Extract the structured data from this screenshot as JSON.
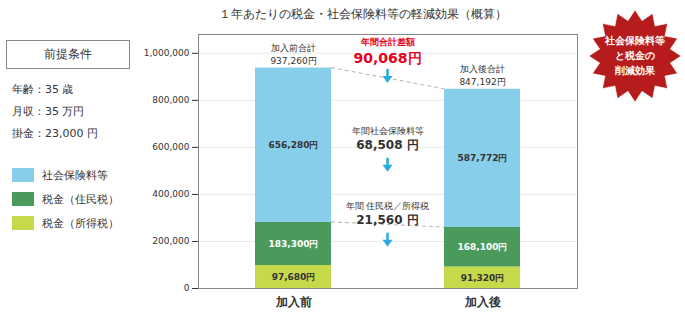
{
  "chart_data": {
    "type": "bar",
    "stacked": true,
    "title": "１年あたりの税金・社会保険料等の軽減効果（概算）",
    "categories": [
      "加入前",
      "加入後"
    ],
    "series": [
      {
        "name": "税金（所得税）",
        "color": "#c5d94a",
        "values": [
          97680,
          91320
        ],
        "value_labels": [
          "97,680円",
          "91,320円"
        ]
      },
      {
        "name": "税金（住民税）",
        "color": "#4a9a5c",
        "values": [
          183300,
          168100
        ],
        "value_labels": [
          "183,300円",
          "168,100円"
        ]
      },
      {
        "name": "社会保険料等",
        "color": "#87CEEB",
        "values": [
          656280,
          587772
        ],
        "value_labels": [
          "656,280円",
          "587,772円"
        ]
      }
    ],
    "totals": [
      937260,
      847192
    ],
    "total_labels": [
      "加入前合計",
      "加入後合計"
    ],
    "total_value_labels": [
      "937,260円",
      "847,192円"
    ],
    "ylim": [
      0,
      1080000
    ],
    "yticks": [
      0,
      {
        "value": 200000,
        "label": "200,000"
      },
      {
        "value": 400000,
        "label": "400,000"
      },
      {
        "value": 600000,
        "label": "600,000"
      },
      {
        "value": 800000,
        "label": "800,000"
      },
      {
        "value": 1000000,
        "label": "1,000,000"
      }
    ],
    "grid": true,
    "data_labels": true,
    "legend": "left",
    "differences": [
      {
        "label": "年間合計差額",
        "value_label": "90,068円",
        "color": "#e8001c"
      },
      {
        "label": "年間社会保険料等",
        "value_label": "68,508 円"
      },
      {
        "label": "年間 住民税／所得税",
        "value_label": "21,560 円"
      }
    ],
    "arrow_color": "#29abe2",
    "premise": {
      "title": "前提条件",
      "lines": [
        "年齢：35 歳",
        "月収：35 万円",
        "掛金：23,000 円"
      ]
    },
    "badge": {
      "lines": [
        "社会保険料等",
        "と税金の",
        "削減効果"
      ],
      "color": "#b71c1c"
    }
  }
}
